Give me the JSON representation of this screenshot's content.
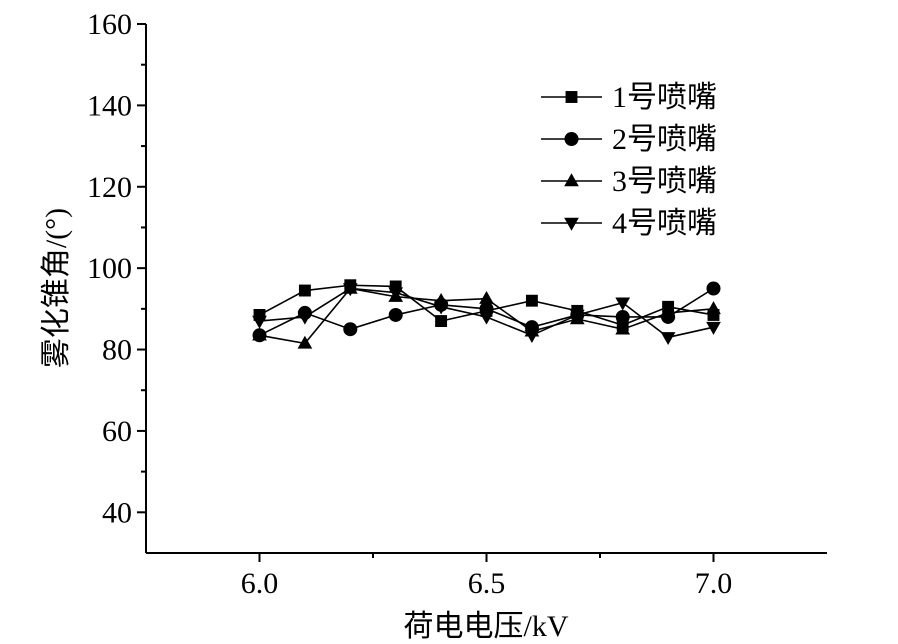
{
  "chart_data": {
    "type": "line",
    "xlabel": "荷电电压/kV",
    "ylabel": "雾化锥角/(°)",
    "xlim": [
      5.75,
      7.25
    ],
    "ylim": [
      30,
      160
    ],
    "xticks": [
      6.0,
      6.5,
      7.0
    ],
    "xtick_labels": [
      "6.0",
      "6.5",
      "7.0"
    ],
    "yticks": [
      40,
      60,
      80,
      100,
      120,
      140,
      160
    ],
    "ytick_labels": [
      "40",
      "60",
      "80",
      "100",
      "120",
      "140",
      "160"
    ],
    "grid": false,
    "legend_position": "top-right",
    "x": [
      6.0,
      6.1,
      6.2,
      6.3,
      6.4,
      6.5,
      6.6,
      6.7,
      6.8,
      6.9,
      7.0
    ],
    "series": [
      {
        "name": "1号喷嘴",
        "marker": "square",
        "values": [
          88.5,
          94.5,
          95.8,
          95.5,
          87.0,
          89.5,
          92.0,
          89.5,
          86.0,
          90.5,
          88.5
        ]
      },
      {
        "name": "2号喷嘴",
        "marker": "circle",
        "values": [
          83.5,
          89.0,
          85.0,
          88.5,
          91.0,
          90.0,
          85.5,
          88.5,
          88.0,
          88.0,
          95.0
        ]
      },
      {
        "name": "3号喷嘴",
        "marker": "triangle-up",
        "values": [
          83.5,
          81.5,
          95.0,
          93.0,
          92.0,
          92.5,
          84.5,
          87.5,
          85.0,
          89.0,
          90.0
        ]
      },
      {
        "name": "4号喷嘴",
        "marker": "triangle-down",
        "values": [
          87.0,
          88.0,
          95.0,
          94.0,
          90.5,
          88.0,
          83.5,
          88.5,
          91.5,
          83.0,
          85.5
        ]
      }
    ],
    "colors": {
      "line": "#000000",
      "marker": "#000000",
      "background": "#ffffff"
    }
  }
}
